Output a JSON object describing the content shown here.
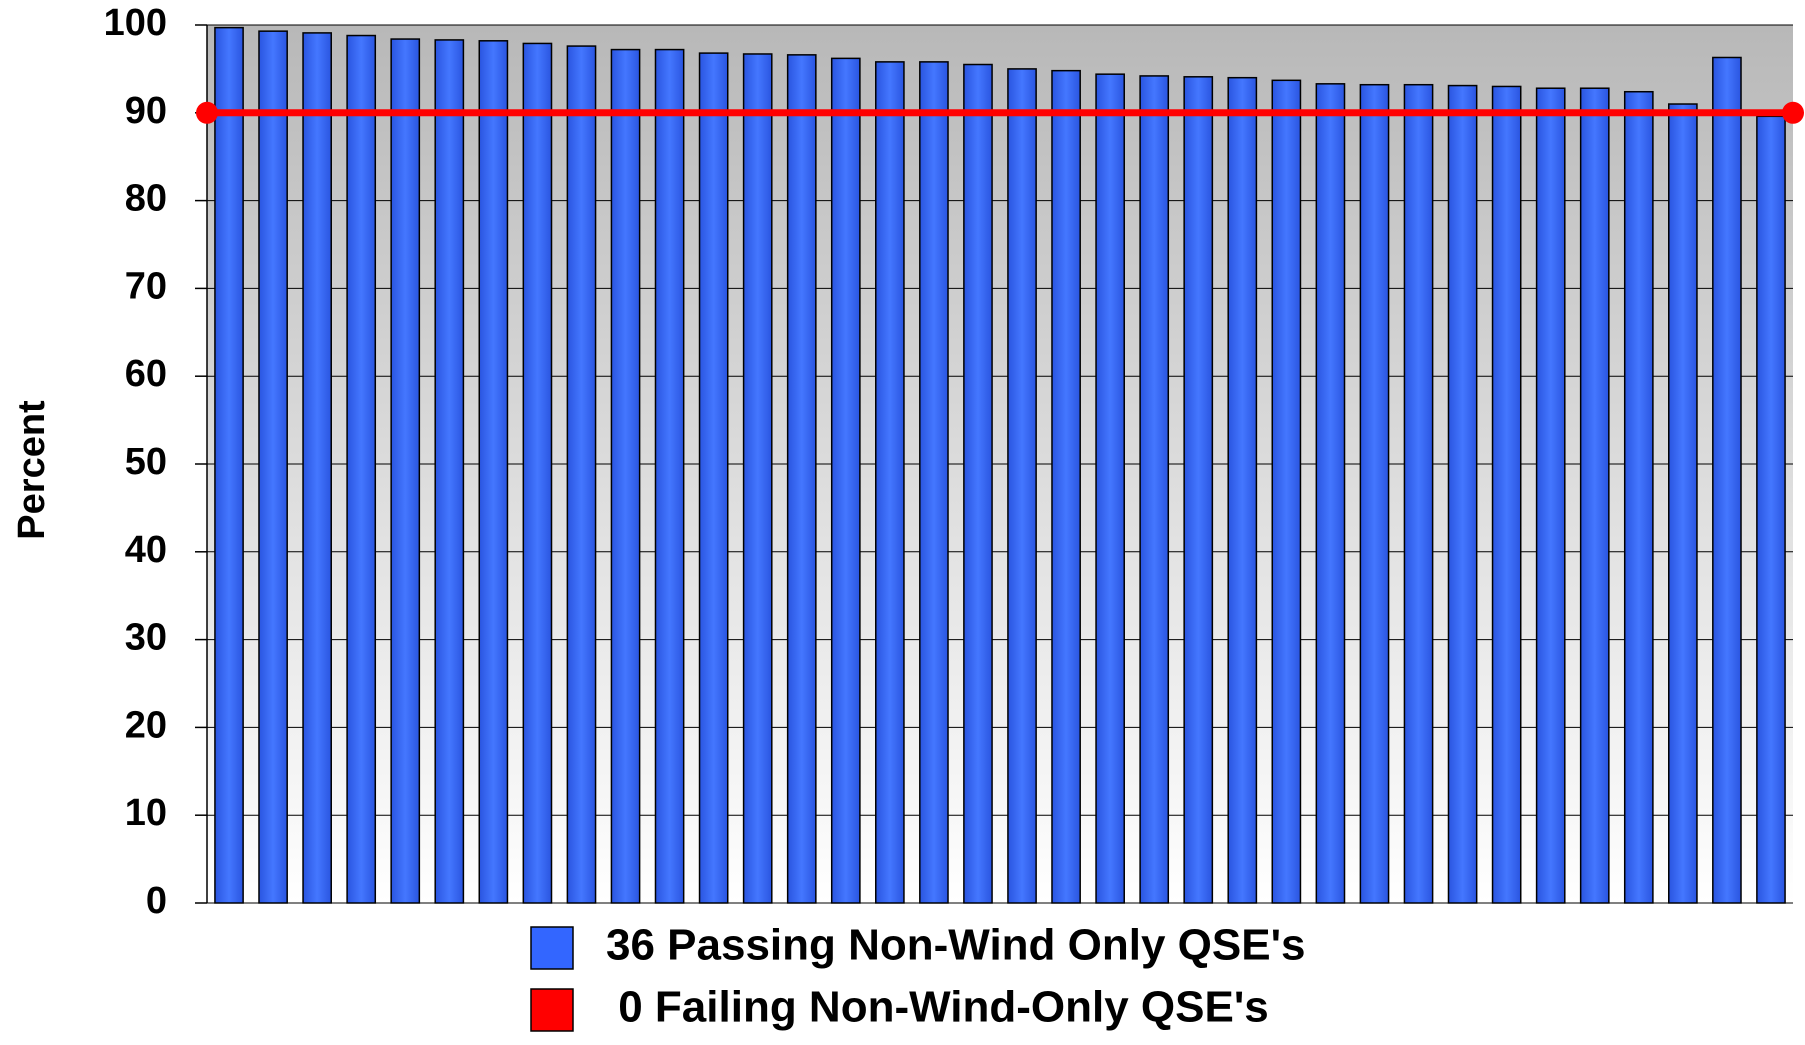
{
  "chart_data": {
    "type": "bar",
    "y_label": "Percent",
    "categories": [
      null,
      null,
      null,
      null,
      null,
      null,
      null,
      null,
      null,
      null,
      null,
      null,
      null,
      null,
      null,
      null,
      null,
      null,
      null,
      null,
      null,
      null,
      null,
      null,
      null,
      null,
      null,
      null,
      null,
      null,
      null,
      null,
      null,
      null,
      null,
      null
    ],
    "series": [
      {
        "name": "36 Passing Non-Wind Only QSE's",
        "color": "#3366ff",
        "values": [
          99.7,
          99.3,
          99.1,
          98.8,
          98.4,
          98.3,
          98.2,
          97.9,
          97.6,
          97.2,
          97.2,
          96.8,
          96.7,
          96.6,
          96.2,
          95.8,
          95.8,
          95.5,
          95.0,
          94.8,
          94.4,
          94.2,
          94.1,
          94.0,
          93.7,
          93.3,
          93.2,
          93.2,
          93.1,
          93.0,
          92.8,
          92.8,
          92.4,
          91.0,
          96.3,
          89.6
        ]
      },
      {
        "name": " 0 Failing Non-Wind-Only QSE's",
        "color": "#ff0000",
        "values": [
          null,
          null,
          null,
          null,
          null,
          null,
          null,
          null,
          null,
          null,
          null,
          null,
          null,
          null,
          null,
          null,
          null,
          null,
          null,
          null,
          null,
          null,
          null,
          null,
          null,
          null,
          null,
          null,
          null,
          null,
          null,
          null,
          null,
          null,
          null,
          null
        ]
      }
    ],
    "threshold": {
      "value": 90,
      "color": "#ff0000"
    },
    "ylim": [
      0,
      100
    ],
    "yticks": [
      0,
      10,
      20,
      30,
      40,
      50,
      60,
      70,
      80,
      90,
      100
    ],
    "grid": true
  }
}
